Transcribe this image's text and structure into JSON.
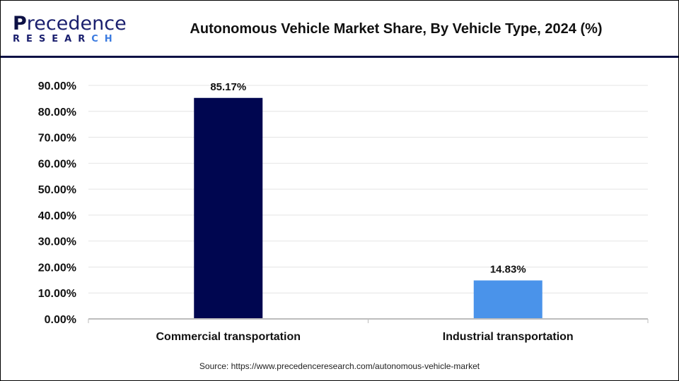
{
  "brand": {
    "logo_main": "Precedence",
    "logo_sub": "RESEARCH"
  },
  "title": "Autonomous Vehicle Market Share, By Vehicle Type, 2024 (%)",
  "source": "Source: https://www.precedenceresearch.com/autonomous-vehicle-market",
  "chart_data": {
    "type": "bar",
    "title": "Autonomous Vehicle Market Share, By Vehicle Type, 2024 (%)",
    "categories": [
      "Commercial transportation",
      "Industrial transportation"
    ],
    "values": [
      85.17,
      14.83
    ],
    "data_labels": [
      "85.17%",
      "14.83%"
    ],
    "colors": [
      "#000650",
      "#4a93ea"
    ],
    "ylim": [
      0,
      90
    ],
    "yticks": [
      0,
      10,
      20,
      30,
      40,
      50,
      60,
      70,
      80,
      90
    ],
    "ytick_labels": [
      "0.00%",
      "10.00%",
      "20.00%",
      "30.00%",
      "40.00%",
      "50.00%",
      "60.00%",
      "70.00%",
      "80.00%",
      "90.00%"
    ],
    "grid": true,
    "xlabel": "",
    "ylabel": ""
  }
}
